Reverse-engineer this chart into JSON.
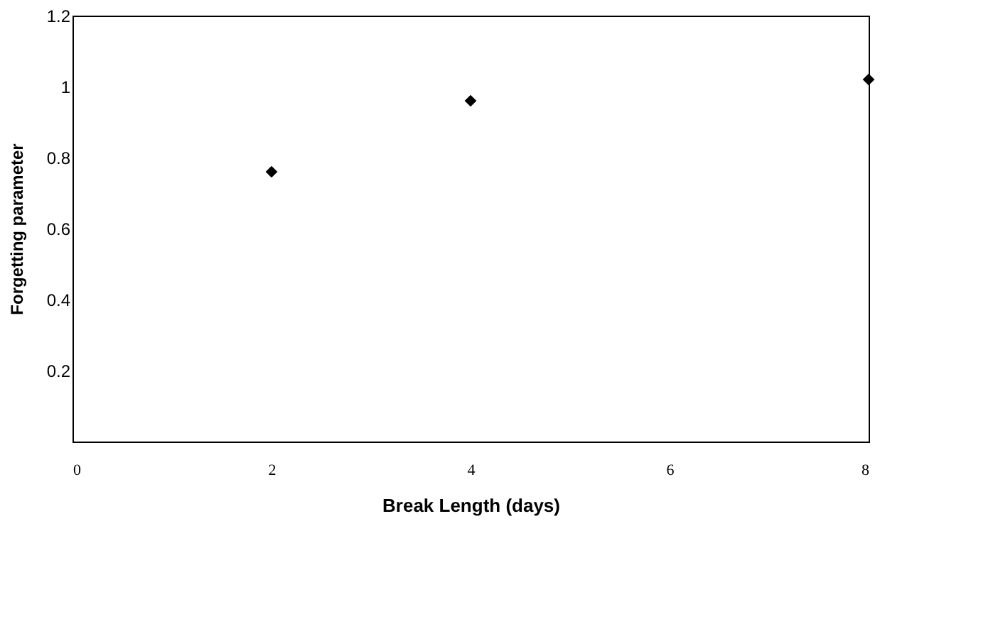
{
  "chart_data": {
    "type": "scatter",
    "xlabel": "Break Length (days)",
    "ylabel": "Forgetting parameter",
    "x": [
      2,
      4,
      8
    ],
    "series": [
      {
        "color": "#000000",
        "values": [
          0.76,
          0.96,
          1.02
        ]
      }
    ],
    "xlim": [
      0,
      8
    ],
    "xticks": [
      0,
      2,
      4,
      6,
      8
    ],
    "ylim": [
      0,
      1.2
    ],
    "yticks": [
      0.2,
      0.4,
      0.6,
      0.8,
      1,
      1.2
    ],
    "marker": "diamond",
    "grid": false
  }
}
